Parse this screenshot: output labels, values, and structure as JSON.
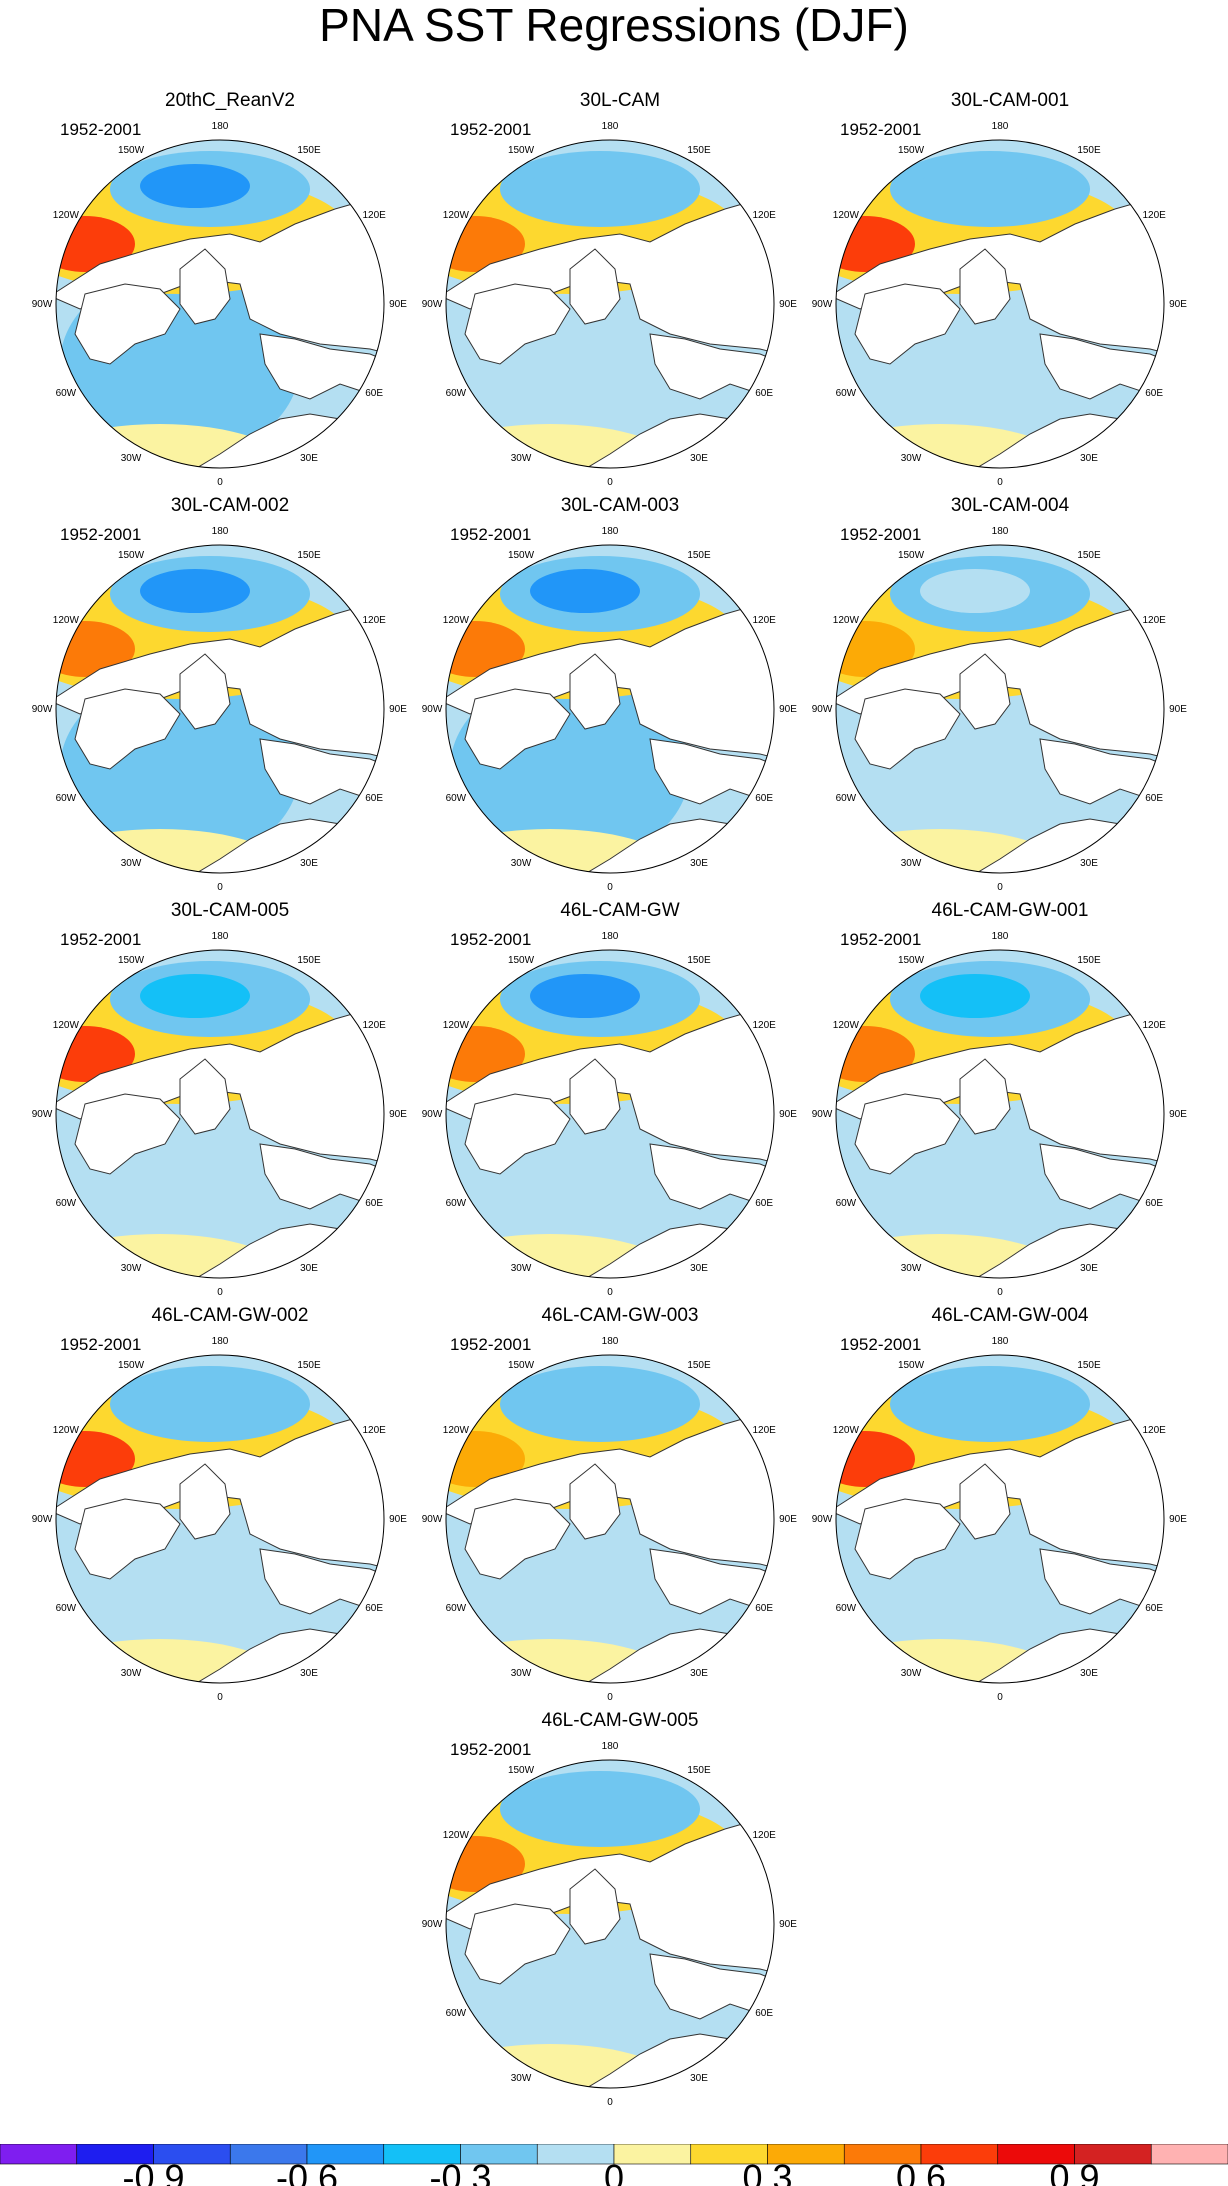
{
  "title": "PNA SST Regressions (DJF)",
  "period": "1952-2001",
  "longitude_labels": [
    "180",
    "150E",
    "120E",
    "90E",
    "60E",
    "30E",
    "0",
    "30W",
    "60W",
    "90W",
    "120W",
    "150W"
  ],
  "colors": {
    "contour_levels": [
      "#7f1ef0",
      "#1e1ef0",
      "#2b4ef0",
      "#3b78ec",
      "#2196f8",
      "#14c0f7",
      "#70c6f0",
      "#b4dff2",
      "#fbf3a1",
      "#fdd82f",
      "#fcaa06",
      "#fc7a08",
      "#fc3d0a",
      "#ec0a0a",
      "#d42222",
      "#ffb2b2"
    ],
    "land": "#ffffff",
    "coastline": "#333333"
  },
  "chart_data": {
    "type": "heatmap",
    "projection": "north polar stereographic",
    "title": "PNA SST Regressions (DJF)",
    "colorbar": {
      "levels": [
        -1.05,
        -0.9,
        -0.75,
        -0.6,
        -0.45,
        -0.3,
        -0.15,
        0,
        0.15,
        0.3,
        0.45,
        0.6,
        0.75,
        0.9,
        1.05
      ],
      "tick_labels": [
        "-0.9",
        "-0.6",
        "-0.3",
        "0",
        "0.3",
        "0.6",
        "0.9"
      ]
    },
    "panels": [
      {
        "name": "20thC_ReanV2",
        "period": "1952-2001",
        "pacific_min": -0.6,
        "pacific_max": 0.6,
        "atlantic": -0.3
      },
      {
        "name": "30L-CAM",
        "period": "1952-2001",
        "pacific_min": -0.3,
        "pacific_max": 0.45,
        "atlantic": -0.15
      },
      {
        "name": "30L-CAM-001",
        "period": "1952-2001",
        "pacific_min": -0.3,
        "pacific_max": 0.6,
        "atlantic": -0.15
      },
      {
        "name": "30L-CAM-002",
        "period": "1952-2001",
        "pacific_min": -0.6,
        "pacific_max": 0.45,
        "atlantic": -0.3
      },
      {
        "name": "30L-CAM-003",
        "period": "1952-2001",
        "pacific_min": -0.6,
        "pacific_max": 0.45,
        "atlantic": -0.3
      },
      {
        "name": "30L-CAM-004",
        "period": "1952-2001",
        "pacific_min": -0.15,
        "pacific_max": 0.3,
        "atlantic": -0.15
      },
      {
        "name": "30L-CAM-005",
        "period": "1952-2001",
        "pacific_min": -0.45,
        "pacific_max": 0.6,
        "atlantic": -0.15
      },
      {
        "name": "46L-CAM-GW",
        "period": "1952-2001",
        "pacific_min": -0.6,
        "pacific_max": 0.45,
        "atlantic": -0.15
      },
      {
        "name": "46L-CAM-GW-001",
        "period": "1952-2001",
        "pacific_min": -0.45,
        "pacific_max": 0.45,
        "atlantic": -0.15
      },
      {
        "name": "46L-CAM-GW-002",
        "period": "1952-2001",
        "pacific_min": -0.3,
        "pacific_max": 0.6,
        "atlantic": -0.15
      },
      {
        "name": "46L-CAM-GW-003",
        "period": "1952-2001",
        "pacific_min": -0.3,
        "pacific_max": 0.3,
        "atlantic": -0.15
      },
      {
        "name": "46L-CAM-GW-004",
        "period": "1952-2001",
        "pacific_min": -0.3,
        "pacific_max": 0.6,
        "atlantic": -0.15
      },
      {
        "name": "46L-CAM-GW-005",
        "period": "1952-2001",
        "pacific_min": -0.3,
        "pacific_max": 0.45,
        "atlantic": -0.15
      }
    ]
  }
}
